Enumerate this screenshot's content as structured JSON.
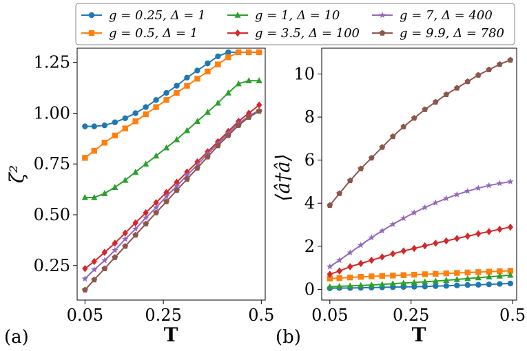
{
  "legend": [
    {
      "g": "0.25",
      "delta": "1",
      "color": "#1f77b4",
      "marker": "circle"
    },
    {
      "g": "1",
      "delta": "10",
      "color": "#2ca02c",
      "marker": "triangle"
    },
    {
      "g": "7",
      "delta": "400",
      "color": "#9467bd",
      "marker": "star"
    },
    {
      "g": "0.5",
      "delta": "1",
      "color": "#ff7f0e",
      "marker": "square"
    },
    {
      "g": "3.5",
      "delta": "100",
      "color": "#d62728",
      "marker": "diamond"
    },
    {
      "g": "9.9",
      "delta": "780",
      "color": "#8c564b",
      "marker": "pentagon"
    }
  ],
  "chart_data": [
    {
      "type": "line",
      "panel_label": "(a)",
      "xlabel": "T",
      "ylabel": "ζ²",
      "xlim": [
        0.03,
        0.51
      ],
      "ylim": [
        0.08,
        1.32
      ],
      "xticks": [
        0.05,
        0.25,
        0.5
      ],
      "xtick_labels": [
        "0.05",
        "0.25",
        "0.5"
      ],
      "yticks": [
        0.25,
        0.5,
        0.75,
        1.0,
        1.25
      ],
      "ytick_labels": [
        "0.25",
        "0.50",
        "0.75",
        "1.00",
        "1.25"
      ],
      "x": [
        0.05,
        0.0736,
        0.1,
        0.1263,
        0.1526,
        0.1789,
        0.2052,
        0.2315,
        0.2578,
        0.2841,
        0.3104,
        0.3367,
        0.363,
        0.3893,
        0.4156,
        0.4419,
        0.4682,
        0.4945
      ],
      "series": [
        {
          "name": "g = 0.25, Δ = 1",
          "color": "#1f77b4",
          "marker": "circle",
          "values": [
            0.935,
            0.935,
            0.94,
            0.955,
            0.975,
            1.0,
            1.03,
            1.065,
            1.1,
            1.135,
            1.175,
            1.21,
            1.245,
            1.28,
            1.3,
            1.3,
            1.3,
            1.3
          ]
        },
        {
          "name": "g = 0.5, Δ = 1",
          "color": "#ff7f0e",
          "marker": "square",
          "values": [
            0.78,
            0.815,
            0.855,
            0.89,
            0.925,
            0.96,
            0.995,
            1.03,
            1.065,
            1.1,
            1.135,
            1.17,
            1.205,
            1.24,
            1.275,
            1.3,
            1.3,
            1.3
          ]
        },
        {
          "name": "g = 1, Δ = 10",
          "color": "#2ca02c",
          "marker": "triangle",
          "values": [
            0.585,
            0.585,
            0.605,
            0.635,
            0.67,
            0.71,
            0.75,
            0.79,
            0.83,
            0.87,
            0.915,
            0.96,
            1.005,
            1.05,
            1.1,
            1.145,
            1.16,
            1.16
          ]
        },
        {
          "name": "g = 3.5, Δ = 100",
          "color": "#d62728",
          "marker": "diamond",
          "values": [
            0.235,
            0.27,
            0.315,
            0.36,
            0.41,
            0.46,
            0.51,
            0.56,
            0.61,
            0.66,
            0.71,
            0.76,
            0.81,
            0.86,
            0.91,
            0.96,
            1.0,
            1.04
          ]
        },
        {
          "name": "g = 7, Δ = 400",
          "color": "#9467bd",
          "marker": "star",
          "values": [
            0.185,
            0.23,
            0.275,
            0.325,
            0.38,
            0.43,
            0.485,
            0.535,
            0.59,
            0.64,
            0.695,
            0.745,
            0.8,
            0.85,
            0.9,
            0.95,
            0.985,
            1.015
          ]
        },
        {
          "name": "g = 9.9, Δ = 780",
          "color": "#8c564b",
          "marker": "pentagon",
          "values": [
            0.13,
            0.18,
            0.235,
            0.29,
            0.345,
            0.4,
            0.455,
            0.51,
            0.565,
            0.62,
            0.675,
            0.73,
            0.785,
            0.84,
            0.89,
            0.94,
            0.98,
            1.01
          ]
        }
      ]
    },
    {
      "type": "line",
      "panel_label": "(b)",
      "xlabel": "T",
      "ylabel": "⟨â†â⟩",
      "xlim": [
        0.03,
        0.51
      ],
      "ylim": [
        -0.5,
        11.2
      ],
      "xticks": [
        0.05,
        0.25,
        0.5
      ],
      "xtick_labels": [
        "0.05",
        "0.25",
        "0.5"
      ],
      "yticks": [
        0,
        2,
        4,
        6,
        8,
        10
      ],
      "ytick_labels": [
        "0",
        "2",
        "4",
        "6",
        "8",
        "10"
      ],
      "x": [
        0.05,
        0.0736,
        0.1,
        0.1263,
        0.1526,
        0.1789,
        0.2052,
        0.2315,
        0.2578,
        0.2841,
        0.3104,
        0.3367,
        0.363,
        0.3893,
        0.4156,
        0.4419,
        0.4682,
        0.4945
      ],
      "series": [
        {
          "name": "g = 0.25, Δ = 1",
          "color": "#1f77b4",
          "marker": "circle",
          "values": [
            0.05,
            0.06,
            0.06,
            0.07,
            0.08,
            0.09,
            0.1,
            0.11,
            0.12,
            0.13,
            0.15,
            0.16,
            0.18,
            0.2,
            0.21,
            0.23,
            0.25,
            0.27
          ]
        },
        {
          "name": "g = 0.5, Δ = 1",
          "color": "#ff7f0e",
          "marker": "square",
          "values": [
            0.5,
            0.52,
            0.55,
            0.58,
            0.6,
            0.62,
            0.64,
            0.66,
            0.68,
            0.7,
            0.72,
            0.74,
            0.76,
            0.78,
            0.8,
            0.82,
            0.84,
            0.86
          ]
        },
        {
          "name": "g = 1, Δ = 10",
          "color": "#2ca02c",
          "marker": "triangle",
          "values": [
            0.12,
            0.14,
            0.16,
            0.18,
            0.2,
            0.23,
            0.26,
            0.29,
            0.32,
            0.35,
            0.38,
            0.42,
            0.46,
            0.5,
            0.54,
            0.58,
            0.62,
            0.66
          ]
        },
        {
          "name": "g = 3.5, Δ = 100",
          "color": "#d62728",
          "marker": "diamond",
          "values": [
            0.7,
            0.85,
            1.05,
            1.2,
            1.35,
            1.5,
            1.65,
            1.78,
            1.9,
            2.02,
            2.14,
            2.25,
            2.36,
            2.47,
            2.58,
            2.68,
            2.79,
            2.89
          ]
        },
        {
          "name": "g = 7, Δ = 400",
          "color": "#9467bd",
          "marker": "star",
          "values": [
            1.05,
            1.35,
            1.7,
            2.05,
            2.4,
            2.72,
            3.02,
            3.3,
            3.56,
            3.8,
            4.02,
            4.22,
            4.4,
            4.56,
            4.7,
            4.82,
            4.92,
            5.0
          ]
        },
        {
          "name": "g = 9.9, Δ = 780",
          "color": "#8c564b",
          "marker": "pentagon",
          "values": [
            3.9,
            4.45,
            5.05,
            5.6,
            6.1,
            6.6,
            7.1,
            7.55,
            7.95,
            8.35,
            8.7,
            9.05,
            9.35,
            9.65,
            9.95,
            10.2,
            10.45,
            10.65
          ]
        }
      ]
    }
  ]
}
